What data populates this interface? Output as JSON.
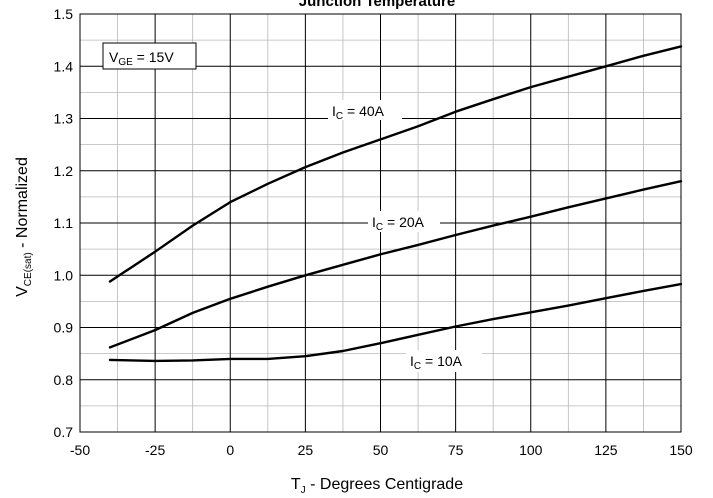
{
  "chart_data": {
    "type": "line",
    "title": "Junction Temperature",
    "xlabel": {
      "main": "T",
      "sub": "J",
      "rest": " - Degrees Centigrade"
    },
    "ylabel": {
      "main": "V",
      "sub": "CE(sat)",
      "rest": " - Normalized"
    },
    "xlim": [
      -50,
      150
    ],
    "ylim": [
      0.7,
      1.5
    ],
    "x_ticks": [
      "-50",
      "-25",
      "0",
      "25",
      "50",
      "75",
      "100",
      "125",
      "150"
    ],
    "y_ticks": [
      "0.7",
      "0.8",
      "0.9",
      "1.0",
      "1.1",
      "1.2",
      "1.3",
      "1.4",
      "1.5"
    ],
    "grid": true,
    "condition": {
      "main": "V",
      "sub": "GE",
      "rest": " = 15V"
    },
    "series": [
      {
        "name": "I_C = 40A",
        "label": {
          "main": "I",
          "sub": "C",
          "rest": " = 40A"
        },
        "x": [
          -40,
          -25,
          -12.5,
          0,
          12.5,
          25,
          37.5,
          50,
          62.5,
          75,
          87.5,
          100,
          112.5,
          125,
          137.5,
          150
        ],
        "y": [
          0.988,
          1.045,
          1.095,
          1.14,
          1.175,
          1.207,
          1.235,
          1.26,
          1.285,
          1.313,
          1.337,
          1.36,
          1.38,
          1.4,
          1.42,
          1.438
        ]
      },
      {
        "name": "I_C = 20A",
        "label": {
          "main": "I",
          "sub": "C",
          "rest": " = 20A"
        },
        "x": [
          -40,
          -25,
          -12.5,
          0,
          12.5,
          25,
          37.5,
          50,
          62.5,
          75,
          87.5,
          100,
          112.5,
          125,
          137.5,
          150
        ],
        "y": [
          0.862,
          0.895,
          0.928,
          0.955,
          0.978,
          1.0,
          1.02,
          1.04,
          1.058,
          1.077,
          1.095,
          1.112,
          1.13,
          1.147,
          1.164,
          1.18
        ]
      },
      {
        "name": "I_C = 10A",
        "label": {
          "main": "I",
          "sub": "C",
          "rest": " = 10A"
        },
        "x": [
          -40,
          -25,
          -12.5,
          0,
          12.5,
          25,
          37.5,
          50,
          62.5,
          75,
          87.5,
          100,
          112.5,
          125,
          137.5,
          150
        ],
        "y": [
          0.838,
          0.836,
          0.837,
          0.84,
          0.84,
          0.845,
          0.855,
          0.87,
          0.886,
          0.902,
          0.916,
          0.929,
          0.942,
          0.956,
          0.97,
          0.983
        ]
      }
    ]
  }
}
